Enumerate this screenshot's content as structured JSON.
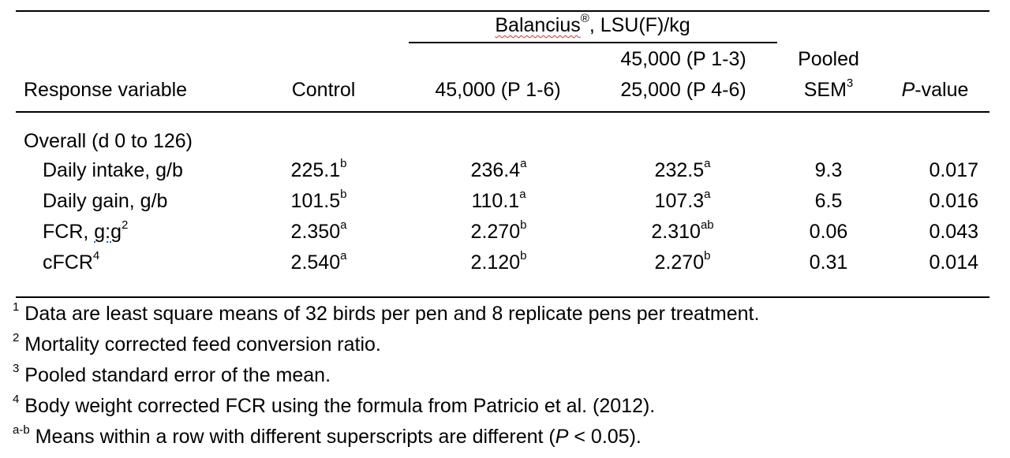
{
  "header": {
    "group_label": "Balancius",
    "group_registered": "®",
    "group_unit": ", LSU(F)/kg",
    "response_variable": "Response variable",
    "control": "Control",
    "treat1": "45,000 (P 1-6)",
    "treat2_line1": "45,000 (P 1-3)",
    "treat2_line2": "25,000 (P 4-6)",
    "sem_line1": "Pooled",
    "sem_line2": "SEM",
    "sem_sup": "3",
    "pvalue_p": "P",
    "pvalue_rest": "-value"
  },
  "section": "Overall (d 0 to 126)",
  "rows": [
    {
      "label": "Daily intake, g/b",
      "label_sup": "",
      "control": "225.1",
      "control_sup": "b",
      "t1": "236.4",
      "t1_sup": "a",
      "t2": "232.5",
      "t2_sup": "a",
      "sem": "9.3",
      "p": "0.017"
    },
    {
      "label": "Daily gain, g/b",
      "label_sup": "",
      "control": "101.5",
      "control_sup": "b",
      "t1": "110.1",
      "t1_sup": "a",
      "t2": "107.3",
      "t2_sup": "a",
      "sem": "6.5",
      "p": "0.016"
    },
    {
      "label": "FCR, ",
      "label_extra": "g:g",
      "label_sup": "2",
      "control": "2.350",
      "control_sup": "a",
      "t1": "2.270",
      "t1_sup": "b",
      "t2": "2.310",
      "t2_sup": "ab",
      "sem": "0.06",
      "p": "0.043"
    },
    {
      "label": "cFCR",
      "label_sup": "4",
      "control": "2.540",
      "control_sup": "a",
      "t1": "2.120",
      "t1_sup": "b",
      "t2": "2.270",
      "t2_sup": "b",
      "sem": "0.31",
      "p": "0.014"
    }
  ],
  "footnotes": [
    {
      "mark": "1",
      "text": " Data are least square means of 32 birds per pen and 8 replicate pens per treatment."
    },
    {
      "mark": "2",
      "text": " Mortality corrected feed conversion ratio."
    },
    {
      "mark": "3",
      "text": " Pooled standard error of the mean."
    },
    {
      "mark": "4",
      "text": " Body weight corrected FCR using the formula from Patricio et al. (2012)."
    },
    {
      "mark": "a-b",
      "text_before": " Means within a row with different superscripts are different (",
      "p": "P",
      "text_after": " < 0.05)."
    }
  ]
}
